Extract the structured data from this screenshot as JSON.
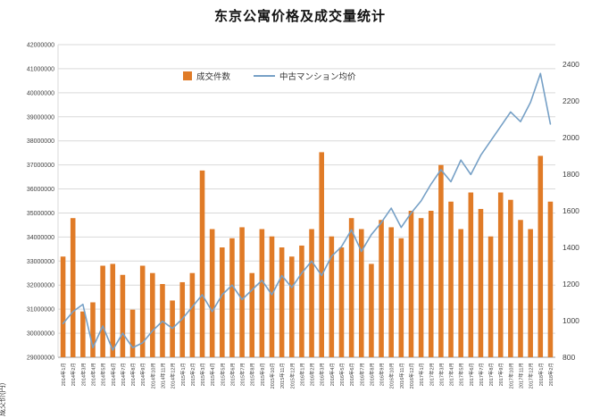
{
  "title": "东京公寓价格及成交量统计",
  "chart_data": {
    "type": "bar+line",
    "title": "东京公寓价格及成交量统计",
    "left_axis": {
      "title": "成交价(円)",
      "min": 29000000,
      "max": 42000000,
      "step": 1000000
    },
    "right_axis": {
      "min": 800,
      "max": 2400,
      "step": 200
    },
    "grid": true,
    "legend_position": "top-inside",
    "colors": {
      "bar": "#e07b27",
      "line": "#76a0c6",
      "grid": "#d9d9d9",
      "axis_text": "#3f3f3f",
      "axis_line": "#9a9a9a"
    },
    "categories": [
      "2014年1月",
      "2014年2月",
      "2014年3月",
      "2014年4月",
      "2014年5月",
      "2014年6月",
      "2014年7月",
      "2014年8月",
      "2014年9月",
      "2014年10月",
      "2014年11月",
      "2014年12月",
      "2015年1月",
      "2015年2月",
      "2015年3月",
      "2015年4月",
      "2015年5月",
      "2015年6月",
      "2015年7月",
      "2015年8月",
      "2015年9月",
      "2015年10月",
      "2015年11月",
      "2015年12月",
      "2016年1月",
      "2016年2月",
      "2016年3月",
      "2016年4月",
      "2016年5月",
      "2016年6月",
      "2016年7月",
      "2016年8月",
      "2016年9月",
      "2016年10月",
      "2016年11月",
      "2016年12月",
      "2017年1月",
      "2017年2月",
      "2017年3月",
      "2017年4月",
      "2017年5月",
      "2017年6月",
      "2017年7月",
      "2017年8月",
      "2017年9月",
      "2017年10月",
      "2017年11月",
      "2017年12月",
      "2018年1月",
      "2018年2月"
    ],
    "series": [
      {
        "name": "成交件数",
        "type": "bar",
        "axis": "right",
        "values": [
          1350,
          1560,
          1050,
          1100,
          1300,
          1310,
          1250,
          1060,
          1300,
          1260,
          1200,
          1110,
          1210,
          1260,
          1820,
          1500,
          1400,
          1450,
          1510,
          1260,
          1500,
          1460,
          1400,
          1350,
          1410,
          1500,
          1920,
          1460,
          1400,
          1560,
          1500,
          1310,
          1550,
          1510,
          1450,
          1600,
          1560,
          1600,
          1850,
          1650,
          1500,
          1700,
          1610,
          1460,
          1700,
          1660,
          1550,
          1500,
          1900,
          1650
        ]
      },
      {
        "name": "中古マンション均价",
        "type": "line",
        "axis": "left",
        "values": [
          30400000,
          30900000,
          31200000,
          29400000,
          30300000,
          29300000,
          30000000,
          29400000,
          29600000,
          30100000,
          30500000,
          30200000,
          30600000,
          31100000,
          31600000,
          30900000,
          31600000,
          32000000,
          31400000,
          31800000,
          32200000,
          31600000,
          32400000,
          31900000,
          32500000,
          33000000,
          32400000,
          33200000,
          33600000,
          34300000,
          33400000,
          34100000,
          34600000,
          35200000,
          34400000,
          35000000,
          35500000,
          36200000,
          36800000,
          36300000,
          37200000,
          36600000,
          37400000,
          38000000,
          38600000,
          39200000,
          38800000,
          39600000,
          40800000,
          38700000
        ]
      }
    ]
  }
}
